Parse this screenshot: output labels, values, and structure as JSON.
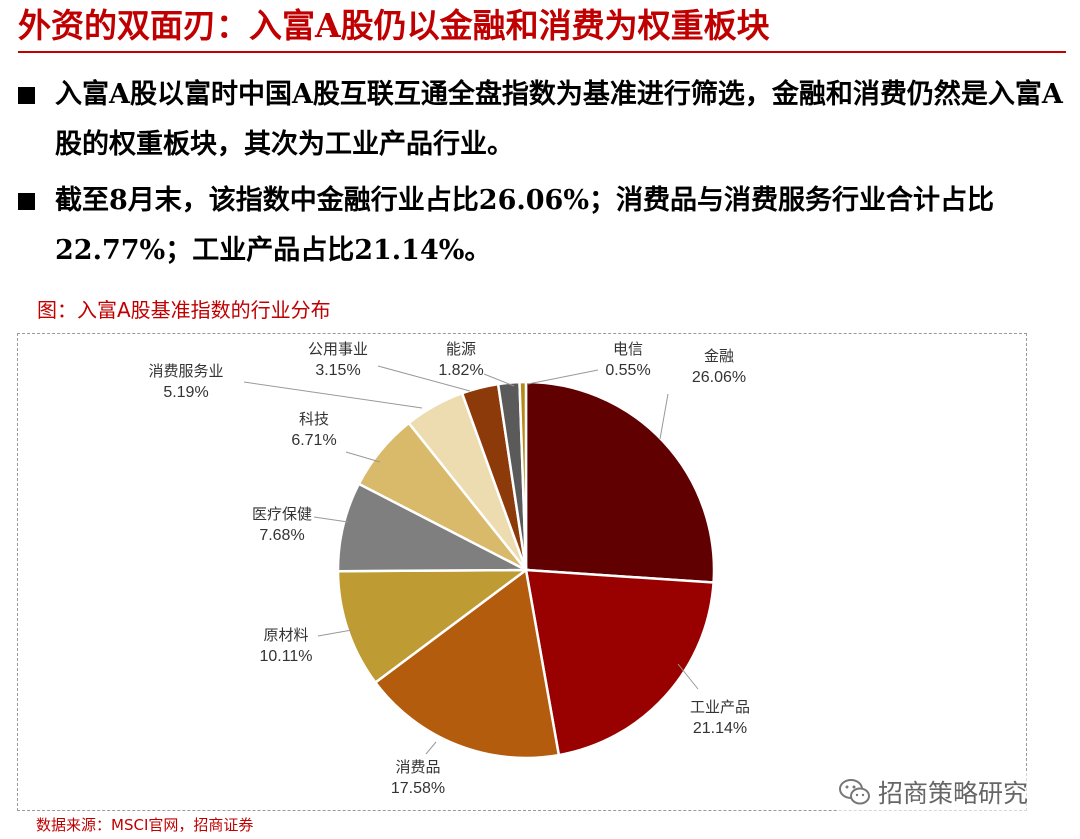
{
  "header": {
    "title": "外资的双面刃：入富A股仍以金融和消费为权重板块"
  },
  "bullets": [
    "入富A股以富时中国A股互联互通全盘指数为基准进行筛选，金融和消费仍然是入富A股的权重板块，其次为工业产品行业。",
    "截至8月末，该指数中金融行业占比26.06%；消费品与消费服务行业合计占比22.77%；工业产品占比21.14%。"
  ],
  "figure": {
    "caption": "图：入富A股基准指数的行业分布",
    "source": "数据来源：MSCI官网，招商证券"
  },
  "watermark": {
    "text": "招商策略研究",
    "icon": "wechat-icon"
  },
  "chart_data": {
    "type": "pie",
    "start": "12 o'clock, clockwise",
    "slices": [
      {
        "label": "金融",
        "value": 26.06,
        "value_label": "26.06%",
        "color": "#600000"
      },
      {
        "label": "工业产品",
        "value": 21.14,
        "value_label": "21.14%",
        "color": "#990000"
      },
      {
        "label": "消费品",
        "value": 17.58,
        "value_label": "17.58%",
        "color": "#b35c0d"
      },
      {
        "label": "原材料",
        "value": 10.11,
        "value_label": "10.11%",
        "color": "#bf9c33"
      },
      {
        "label": "医疗保健",
        "value": 7.68,
        "value_label": "7.68%",
        "color": "#7f7f7f"
      },
      {
        "label": "科技",
        "value": 6.71,
        "value_label": "6.71%",
        "color": "#d9b96a"
      },
      {
        "label": "消费服务业",
        "value": 5.19,
        "value_label": "5.19%",
        "color": "#ecdcb0"
      },
      {
        "label": "公用事业",
        "value": 3.15,
        "value_label": "3.15%",
        "color": "#8c3a0a"
      },
      {
        "label": "能源",
        "value": 1.82,
        "value_label": "1.82%",
        "color": "#5a5a5a"
      },
      {
        "label": "电信",
        "value": 0.55,
        "value_label": "0.55%",
        "color": "#b58a1b"
      }
    ]
  }
}
